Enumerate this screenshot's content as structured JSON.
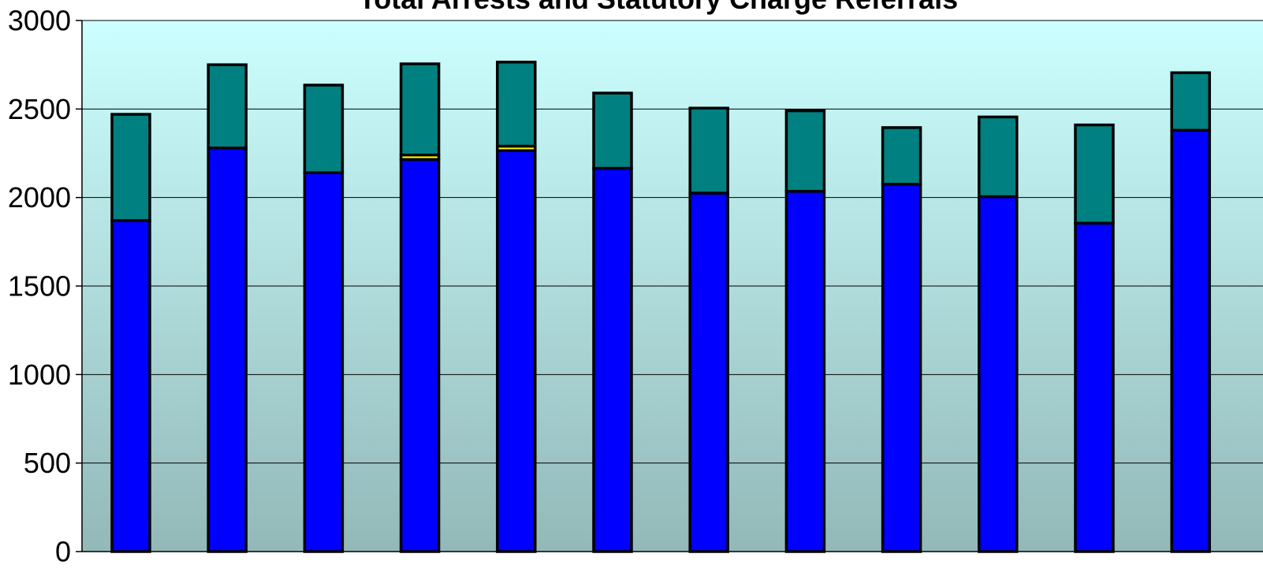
{
  "chart_data": {
    "type": "bar",
    "stacked": true,
    "title": "Total Arrests and Statutory Charge Referrals",
    "xlabel": "",
    "ylabel": "",
    "ylim": [
      0,
      3000
    ],
    "yticks": [
      0,
      500,
      1000,
      1500,
      2000,
      2500,
      3000
    ],
    "grid": true,
    "legend": "none",
    "categories": [
      "",
      "",
      "",
      "",
      "",
      "",
      "",
      "",
      "",
      "",
      "",
      ""
    ],
    "series": [
      {
        "color": "#0000ff",
        "values": [
          1870,
          2280,
          2140,
          2215,
          2265,
          2165,
          2025,
          2035,
          2075,
          2005,
          1855,
          2380
        ]
      },
      {
        "color": "#ffff00",
        "values": [
          0,
          0,
          0,
          25,
          25,
          0,
          0,
          0,
          0,
          0,
          0,
          0
        ]
      },
      {
        "color": "#008080",
        "values": [
          600,
          470,
          495,
          515,
          475,
          425,
          480,
          455,
          320,
          450,
          555,
          325
        ]
      }
    ],
    "background_gradient": [
      "#ccffff",
      "#93b8b8"
    ]
  }
}
